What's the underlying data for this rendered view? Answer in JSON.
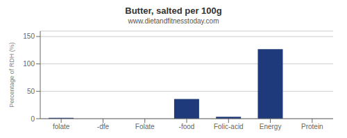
{
  "chart_data": {
    "type": "bar",
    "title": "Butter, salted per 100g",
    "subtitle": "www.dietandfitnesstoday.com",
    "categories": [
      "folate",
      "-dfe",
      "Folate",
      "-food",
      "Folic-acid",
      "Energy",
      "Protein"
    ],
    "values": [
      1.5,
      0,
      0,
      36,
      3.5,
      127,
      0
    ],
    "color": "#1f3a7a",
    "ylabel": "Percentage of RDH (%)",
    "ylim": [
      0,
      160
    ],
    "yticks": [
      0,
      50,
      100,
      150
    ],
    "grid": true
  }
}
